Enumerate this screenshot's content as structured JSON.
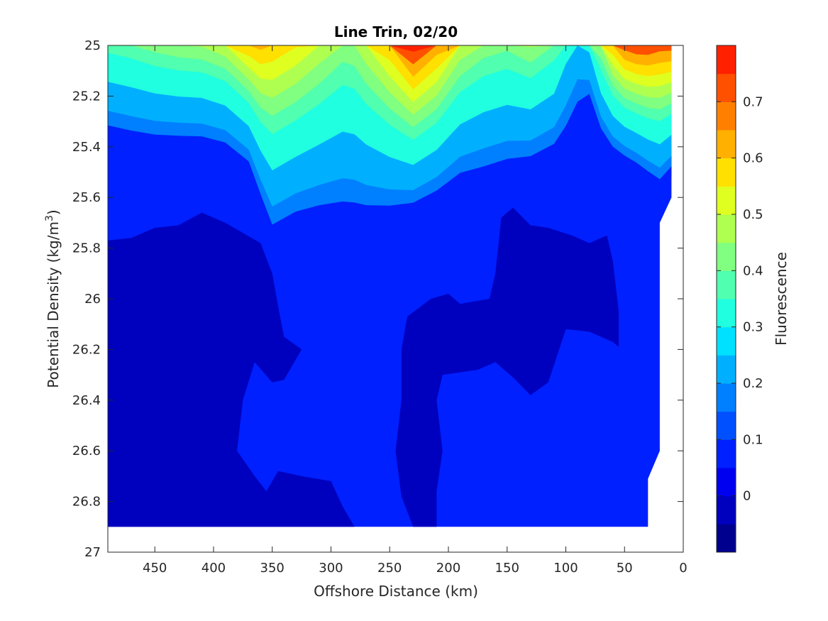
{
  "chart_data": {
    "type": "heatmap",
    "subtype": "filled-contour",
    "title": "Line Trin, 02/20",
    "xlabel": "Offshore Distance (km)",
    "ylabel_main": "Potential Density (kg/m",
    "ylabel_sup": "3",
    "ylabel_close": ")",
    "colorbar_label": "Fluorescence",
    "x_axis": {
      "lim": [
        490,
        0
      ],
      "reversed": true,
      "ticks": [
        450,
        400,
        350,
        300,
        250,
        200,
        150,
        100,
        50,
        0
      ],
      "tick_labels": [
        "450",
        "400",
        "350",
        "300",
        "250",
        "200",
        "150",
        "100",
        "50",
        "0"
      ]
    },
    "y_axis": {
      "lim": [
        25,
        27
      ],
      "reversed": true,
      "ticks": [
        25,
        25.2,
        25.4,
        25.6,
        25.8,
        26,
        26.2,
        26.4,
        26.6,
        26.8,
        27
      ],
      "tick_labels": [
        "25",
        "25.2",
        "25.4",
        "25.6",
        "25.8",
        "26",
        "26.2",
        "26.4",
        "26.6",
        "26.8",
        "27"
      ]
    },
    "colorbar": {
      "lim": [
        -0.1,
        0.8
      ],
      "levels": [
        -0.1,
        -0.05,
        0,
        0.05,
        0.1,
        0.15,
        0.2,
        0.25,
        0.3,
        0.35,
        0.4,
        0.45,
        0.5,
        0.55,
        0.6,
        0.65,
        0.7,
        0.75,
        0.8
      ],
      "colors": [
        "#00008f",
        "#0000bf",
        "#0000f0",
        "#0020ff",
        "#0050ff",
        "#0080ff",
        "#00b0ff",
        "#00e0ff",
        "#20ffdf",
        "#50ffaf",
        "#80ff80",
        "#afff50",
        "#dfff20",
        "#ffe000",
        "#ffb000",
        "#ff8000",
        "#ff5000",
        "#ff2000",
        "#ef0000",
        "#bf0000"
      ],
      "ticks": [
        0,
        0.1,
        0.2,
        0.3,
        0.4,
        0.5,
        0.6,
        0.7
      ],
      "tick_labels": [
        "0",
        "0.1",
        "0.2",
        "0.3",
        "0.4",
        "0.5",
        "0.6",
        "0.7"
      ]
    },
    "data_extent": {
      "x_min": 10,
      "x_max": 490,
      "y_top": 25,
      "y_bottom_min": 26.9
    },
    "colorbar_levels_used": {
      "surface_max_approx": 0.75,
      "background": 0.025,
      "deep_min": -0.05
    },
    "grid": false
  }
}
